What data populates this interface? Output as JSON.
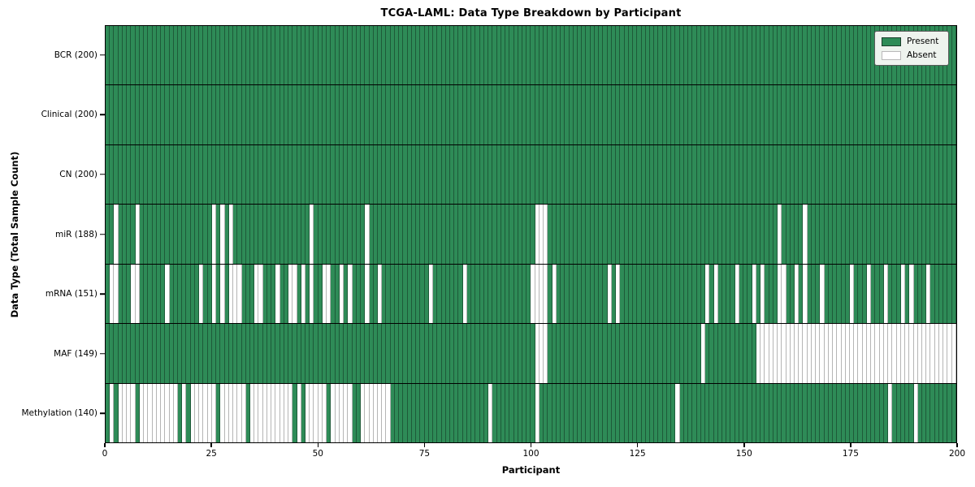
{
  "colors": {
    "present": "#2e8b57",
    "present_edge": "#1e5a39",
    "absent": "#ffffff",
    "absent_edge": "#b5b5b5",
    "row_divider": "#000000",
    "spine": "#000000",
    "legend_bg": "#eef3ee"
  },
  "chart_data": {
    "type": "heatmap",
    "title": "TCGA-LAML: Data Type Breakdown by Participant",
    "xlabel": "Participant",
    "ylabel": "Data Type (Total Sample Count)",
    "x_range": [
      0,
      200
    ],
    "x_ticks": [
      0,
      25,
      50,
      75,
      100,
      125,
      150,
      175,
      200
    ],
    "n_participants": 200,
    "legend": [
      "Present",
      "Absent"
    ],
    "legend_position": "upper right",
    "grid": "row-separators",
    "rows": [
      {
        "data_type": "BCR",
        "label": "BCR (200)",
        "present_count": 200,
        "absent_participants": []
      },
      {
        "data_type": "Clinical",
        "label": "Clinical (200)",
        "present_count": 200,
        "absent_participants": []
      },
      {
        "data_type": "CN",
        "label": "CN (200)",
        "present_count": 200,
        "absent_participants": []
      },
      {
        "data_type": "miR",
        "label": "miR (188)",
        "present_count": 188,
        "absent_participants": [
          2,
          7,
          25,
          27,
          29,
          48,
          61,
          101,
          102,
          103,
          158,
          164
        ]
      },
      {
        "data_type": "mRNA",
        "label": "mRNA (151)",
        "present_count": 151,
        "absent_participants": [
          1,
          2,
          6,
          7,
          14,
          22,
          25,
          27,
          29,
          30,
          31,
          35,
          36,
          40,
          43,
          44,
          46,
          48,
          51,
          52,
          55,
          57,
          61,
          64,
          76,
          84,
          100,
          101,
          102,
          103,
          105,
          118,
          120,
          141,
          143,
          148,
          152,
          154,
          158,
          159,
          162,
          164,
          168,
          175,
          179,
          183,
          187,
          189,
          193
        ]
      },
      {
        "data_type": "MAF",
        "label": "MAF (149)",
        "present_count": 149,
        "absent_participants": [
          101,
          102,
          103,
          140,
          153,
          154,
          155,
          156,
          157,
          158,
          159,
          160,
          161,
          162,
          163,
          164,
          165,
          166,
          167,
          168,
          169,
          170,
          171,
          172,
          173,
          174,
          175,
          176,
          177,
          178,
          179,
          180,
          181,
          182,
          183,
          184,
          185,
          186,
          187,
          188,
          189,
          190,
          191,
          192,
          193,
          194,
          195,
          196,
          197,
          198,
          199
        ]
      },
      {
        "data_type": "Methylation",
        "label": "Methylation (140)",
        "present_count": 140,
        "absent_participants": [
          1,
          3,
          4,
          5,
          6,
          8,
          9,
          10,
          11,
          12,
          13,
          14,
          15,
          16,
          18,
          20,
          21,
          22,
          23,
          24,
          25,
          27,
          28,
          29,
          30,
          31,
          32,
          34,
          35,
          36,
          37,
          38,
          39,
          40,
          41,
          42,
          43,
          45,
          47,
          48,
          49,
          50,
          51,
          53,
          54,
          55,
          56,
          57,
          60,
          61,
          62,
          63,
          64,
          65,
          66,
          90,
          101,
          134,
          184,
          190
        ]
      }
    ]
  }
}
